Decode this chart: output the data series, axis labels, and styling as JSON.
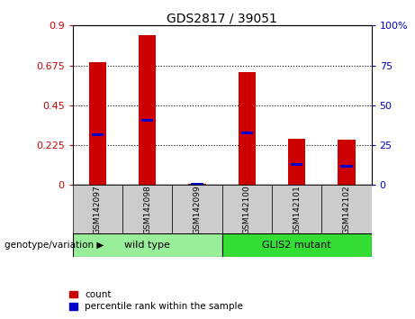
{
  "title": "GDS2817 / 39051",
  "samples": [
    "GSM142097",
    "GSM142098",
    "GSM142099",
    "GSM142100",
    "GSM142101",
    "GSM142102"
  ],
  "red_values": [
    0.695,
    0.845,
    0.005,
    0.635,
    0.26,
    0.255
  ],
  "blue_values": [
    0.285,
    0.365,
    0.005,
    0.295,
    0.115,
    0.105
  ],
  "ylim_left": [
    0,
    0.9
  ],
  "ylim_right": [
    0,
    100
  ],
  "yticks_left": [
    0,
    0.225,
    0.45,
    0.675,
    0.9
  ],
  "yticks_right": [
    0,
    25,
    50,
    75,
    100
  ],
  "ytick_labels_left": [
    "0",
    "0.225",
    "0.45",
    "0.675",
    "0.9"
  ],
  "ytick_labels_right": [
    "0",
    "25",
    "50",
    "75",
    "100%"
  ],
  "left_tick_color": "#cc0000",
  "right_tick_color": "#0000cc",
  "grid_lines": [
    0.225,
    0.45,
    0.675
  ],
  "groups": [
    {
      "label": "wild type",
      "samples": [
        0,
        1,
        2
      ],
      "color": "#99ee99"
    },
    {
      "label": "GLIS2 mutant",
      "samples": [
        3,
        4,
        5
      ],
      "color": "#33dd33"
    }
  ],
  "group_label": "genotype/variation",
  "bar_color_red": "#cc0000",
  "bar_color_blue": "#0000cc",
  "bar_width": 0.35,
  "sample_box_color": "#cccccc",
  "bg_color": "#ffffff",
  "legend_items": [
    "count",
    "percentile rank within the sample"
  ]
}
